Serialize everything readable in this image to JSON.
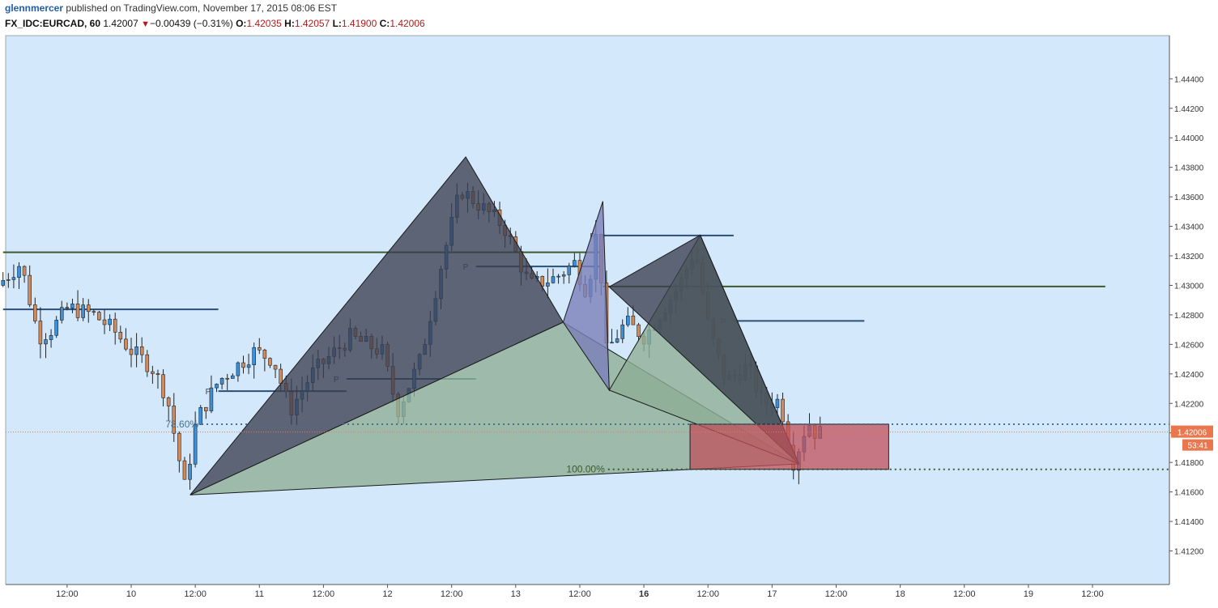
{
  "header": {
    "author": "glennmercer",
    "published_text": " published on TradingView.com, November 17, 2015 08:06 EST"
  },
  "quote": {
    "symbol": "FX_IDC:EURCAD, 60",
    "last": "1.42007",
    "change": "−0.00439 (−0.31%)",
    "open_label": "O:",
    "open": "1.42035",
    "high_label": "H:",
    "high": "1.42057",
    "low_label": "L:",
    "low": "1.41900",
    "close_label": "C:",
    "close": "1.42006"
  },
  "colors": {
    "background": "#d4e8fc",
    "up": "#3d8fd8",
    "down": "#d08a5c",
    "pattern_dark": "#3a3f50",
    "pattern_green": "#8fae95",
    "pattern_purple": "#7a7fb8",
    "zone": "#c0505a",
    "green_line": "#3d5a2c",
    "blue_line": "#2b4f78",
    "price_tag": "#e9774e"
  },
  "chart_data": {
    "type": "candlestick",
    "symbol": "FX_IDC:EURCAD",
    "interval": "60",
    "ylim": [
      1.4102,
      1.4454
    ],
    "y_ticks": [
      "1.44400",
      "1.44200",
      "1.44000",
      "1.43800",
      "1.43600",
      "1.43400",
      "1.43200",
      "1.43000",
      "1.42800",
      "1.42600",
      "1.42400",
      "1.42200",
      "1.42000",
      "1.41800",
      "1.41600",
      "1.41400",
      "1.41200"
    ],
    "x_ticks": [
      {
        "t": 0.5,
        "label": "12:00"
      },
      {
        "t": 1.0,
        "label": "10"
      },
      {
        "t": 1.5,
        "label": "12:00"
      },
      {
        "t": 2.0,
        "label": "11"
      },
      {
        "t": 2.5,
        "label": "12:00"
      },
      {
        "t": 3.0,
        "label": "12"
      },
      {
        "t": 3.5,
        "label": "12:00"
      },
      {
        "t": 4.0,
        "label": "13"
      },
      {
        "t": 4.5,
        "label": "12:00"
      },
      {
        "t": 5.0,
        "label": "16",
        "bold": true
      },
      {
        "t": 5.5,
        "label": "12:00"
      },
      {
        "t": 6.0,
        "label": "17"
      },
      {
        "t": 6.5,
        "label": "12:00"
      },
      {
        "t": 7.0,
        "label": "18"
      },
      {
        "t": 7.5,
        "label": "12:00"
      },
      {
        "t": 8.0,
        "label": "19"
      },
      {
        "t": 8.5,
        "label": "12:00"
      }
    ],
    "x_units": "trading days from chart start (0 = Nov 9 00:00, 5 = Nov 16 00:00)",
    "anchors": [
      [
        1,
        1.4303
      ],
      [
        6.32,
        1.4179
      ]
    ],
    "current_price": "1.42006",
    "countdown": "53:41",
    "patterns": [
      {
        "color": "dark",
        "points": [
          [
            1.46,
            1.4158
          ],
          [
            3.61,
            1.4387
          ],
          [
            4.37,
            1.4275
          ]
        ]
      },
      {
        "color": "green",
        "points": [
          [
            1.46,
            1.4158
          ],
          [
            4.37,
            1.4275
          ],
          [
            6.21,
            1.4179
          ]
        ]
      },
      {
        "color": "purple",
        "points": [
          [
            4.37,
            1.4275
          ],
          [
            4.68,
            1.4357
          ],
          [
            4.73,
            1.4229
          ]
        ]
      },
      {
        "color": "green",
        "points": [
          [
            4.73,
            1.4229
          ],
          [
            5.44,
            1.4334
          ],
          [
            6.21,
            1.4179
          ]
        ]
      },
      {
        "color": "dark",
        "points": [
          [
            4.73,
            1.4299
          ],
          [
            5.44,
            1.4334
          ],
          [
            6.21,
            1.4179
          ]
        ]
      }
    ],
    "zone": {
      "x1": 5.36,
      "x2": 6.91,
      "y1": 1.42059,
      "y2": 1.41753
    },
    "fib_levels": [
      {
        "label": "78.60%",
        "price": 1.42059,
        "x_start": 1.55
      },
      {
        "label": "100.00%",
        "price": 1.41753,
        "x_start": 4.72
      }
    ],
    "horizontal_lines": [
      {
        "price": 1.43224,
        "x1": 0,
        "x2": 4.68,
        "color": "green"
      },
      {
        "price": 1.42992,
        "x1": 4.68,
        "x2": 8.6,
        "color": "green"
      },
      {
        "price": 1.42837,
        "x1": 0,
        "x2": 1.68,
        "color": "blue"
      },
      {
        "price": 1.42283,
        "x1": 1.68,
        "x2": 2.68,
        "color": "blue",
        "label": "P"
      },
      {
        "price": 1.42366,
        "x1": 2.68,
        "x2": 3.69,
        "color": "blue",
        "label": "P"
      },
      {
        "price": 1.43128,
        "x1": 3.69,
        "x2": 4.68,
        "color": "blue",
        "label": "P"
      },
      {
        "price": 1.43338,
        "x1": 4.68,
        "x2": 5.7,
        "color": "blue",
        "label": "P"
      },
      {
        "price": 1.42759,
        "x1": 5.7,
        "x2": 6.72,
        "color": "blue",
        "label": "P"
      }
    ],
    "candles_pivots": [
      [
        0,
        1.43
      ],
      [
        0.18,
        1.4315
      ],
      [
        0.32,
        1.4265
      ],
      [
        0.42,
        1.427
      ],
      [
        0.55,
        1.4285
      ],
      [
        0.75,
        1.428
      ],
      [
        0.9,
        1.427
      ],
      [
        1.05,
        1.4255
      ],
      [
        1.2,
        1.4245
      ],
      [
        1.32,
        1.4225
      ],
      [
        1.42,
        1.418
      ],
      [
        1.46,
        1.4163
      ],
      [
        1.55,
        1.4208
      ],
      [
        1.72,
        1.4235
      ],
      [
        2.0,
        1.4255
      ],
      [
        2.15,
        1.425
      ],
      [
        2.28,
        1.4215
      ],
      [
        2.45,
        1.424
      ],
      [
        2.75,
        1.4265
      ],
      [
        3.0,
        1.4255
      ],
      [
        3.12,
        1.4215
      ],
      [
        3.3,
        1.425
      ],
      [
        3.45,
        1.431
      ],
      [
        3.61,
        1.4365
      ],
      [
        3.75,
        1.4355
      ],
      [
        3.95,
        1.434
      ],
      [
        4.15,
        1.43
      ],
      [
        4.35,
        1.4305
      ],
      [
        4.5,
        1.4315
      ],
      [
        4.6,
        1.4295
      ],
      [
        4.68,
        1.434
      ],
      [
        4.75,
        1.4255
      ],
      [
        4.9,
        1.4275
      ],
      [
        5.05,
        1.4265
      ],
      [
        5.2,
        1.4285
      ],
      [
        5.32,
        1.43
      ],
      [
        5.44,
        1.4325
      ],
      [
        5.55,
        1.427
      ],
      [
        5.68,
        1.4235
      ],
      [
        5.85,
        1.4245
      ],
      [
        5.97,
        1.422
      ],
      [
        6.1,
        1.4222
      ],
      [
        6.21,
        1.418
      ],
      [
        6.32,
        1.4208
      ],
      [
        6.38,
        1.42
      ]
    ]
  }
}
